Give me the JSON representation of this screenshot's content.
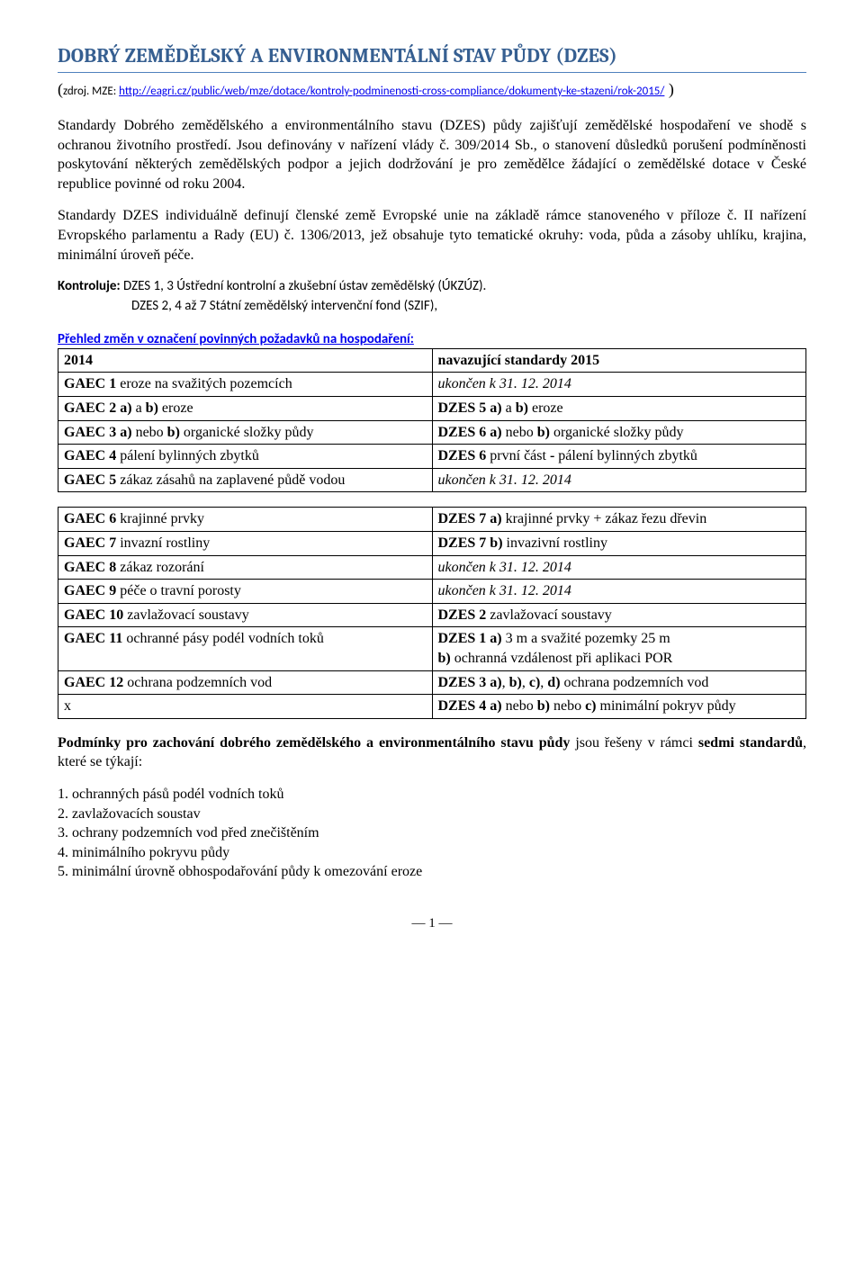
{
  "title": "DOBRÝ ZEMĚDĚLSKÝ A ENVIRONMENTÁLNÍ STAV PŮDY (DZES)",
  "source_lead": "zdroj. MZE: ",
  "source_url_text": "http://eagri.cz/public/web/mze/dotace/kontroly-podminenosti-cross-compliance/dokumenty-ke-stazeni/rok-2015/",
  "source_paren_close": " )",
  "paragraph1": "Standardy Dobrého zemědělského a environmentálního stavu (DZES) půdy zajišťují zemědělské hospodaření ve shodě s ochranou životního prostředí. Jsou definovány v nařízení vlády č. 309/2014 Sb., o stanovení důsledků porušení podmíněnosti poskytování některých zemědělských podpor a jejich dodržování je pro zemědělce žádající o zemědělské dotace v České republice povinné od roku 2004.",
  "paragraph2": "Standardy DZES individuálně definují členské země Evropské unie na základě rámce stanoveného v příloze č. II nařízení Evropského parlamentu a Rady (EU) č. 1306/2013, jež obsahuje tyto tematické okruhy: voda, půda a zásoby uhlíku, krajina, minimální úroveň péče.",
  "kontroluje_label": "Kontroluje:",
  "kontroluje_line1": " DZES 1, 3 Ústřední kontrolní a zkušební ústav zemědělský (ÚKZÚZ).",
  "kontroluje_line2": "DZES 2, 4 až 7 Státní zemědělský intervenční fond (SZIF),",
  "section_link": "Přehled změn v označení povinných požadavků na hospodaření:",
  "table1": {
    "rows": [
      {
        "l_bold": "2014",
        "l_rest": "",
        "r_bold": "navazující standardy 2015",
        "r_rest": ""
      },
      {
        "l_bold": "GAEC 1",
        "l_rest": " eroze na svažitých pozemcích",
        "r_rest_italic": "ukončen k 31. 12. 2014"
      },
      {
        "l_bold": "GAEC 2 a)",
        "l_mid": " a ",
        "l_bold2": "b)",
        "l_rest": " eroze",
        "r": [
          {
            "b": "DZES 5 a)"
          },
          {
            "t": " a "
          },
          {
            "b": "b)"
          },
          {
            "t": " eroze"
          }
        ]
      },
      {
        "l_bold": "GAEC 3 a)",
        "l_mid": " nebo ",
        "l_bold2": "b)",
        "l_rest": " organické složky půdy",
        "r": [
          {
            "b": "DZES 6 a)"
          },
          {
            "t": " nebo "
          },
          {
            "b": "b)"
          },
          {
            "t": " organické složky půdy"
          }
        ]
      },
      {
        "l_bold": "GAEC 4",
        "l_rest": " pálení bylinných zbytků",
        "r": [
          {
            "b": "DZES 6"
          },
          {
            "t": " první část "
          },
          {
            "b": "-"
          },
          {
            "t": " pálení bylinných zbytků"
          }
        ]
      },
      {
        "l_bold": "GAEC 5",
        "l_rest": " zákaz zásahů na zaplavené půdě vodou",
        "r_rest_italic": "ukončen k 31. 12. 2014"
      }
    ]
  },
  "table2": {
    "rows": [
      {
        "l_bold": "GAEC 6",
        "l_rest": " krajinné prvky",
        "r": [
          {
            "b": "DZES 7 a)"
          },
          {
            "t": " krajinné prvky + zákaz řezu dřevin"
          }
        ]
      },
      {
        "l_bold": "GAEC 7",
        "l_rest": " invazní rostliny",
        "r": [
          {
            "b": "DZES 7 b)"
          },
          {
            "t": " invazivní rostliny"
          }
        ]
      },
      {
        "l_bold": "GAEC 8",
        "l_rest": " zákaz rozorání",
        "r_rest_italic": "ukončen k 31. 12. 2014"
      },
      {
        "l_bold": "GAEC 9",
        "l_rest": " péče o travní porosty",
        "r_rest_italic": "ukončen k 31. 12. 2014"
      },
      {
        "l_bold": "GAEC 10",
        "l_rest": " zavlažovací soustavy",
        "r": [
          {
            "b": "DZES 2"
          },
          {
            "t": " zavlažovací soustavy"
          }
        ]
      },
      {
        "l_bold": "GAEC 11",
        "l_rest": " ochranné pásy podél vodních toků",
        "r": [
          {
            "b": "DZES 1 a)"
          },
          {
            "t": " 3 m a svažité pozemky 25 m"
          },
          {
            "br": true
          },
          {
            "b": "b)"
          },
          {
            "t": " ochranná vzdálenost při aplikaci POR"
          }
        ]
      },
      {
        "l_bold": "GAEC 12",
        "l_rest": " ochrana podzemních vod",
        "r": [
          {
            "b": "DZES 3 a)"
          },
          {
            "t": ", "
          },
          {
            "b": "b)"
          },
          {
            "t": ", "
          },
          {
            "b": "c)"
          },
          {
            "t": ", "
          },
          {
            "b": "d)"
          },
          {
            "t": " ochrana podzemních vod"
          }
        ]
      },
      {
        "l_plain": "x",
        "r": [
          {
            "b": "DZES 4 a)"
          },
          {
            "t": " nebo "
          },
          {
            "b": "b)"
          },
          {
            "t": " nebo "
          },
          {
            "b": "c)"
          },
          {
            "t": " minimální pokryv půdy"
          }
        ]
      }
    ]
  },
  "cond_bold": "Podmínky pro zachování dobrého zemědělského a environmentálního stavu půdy",
  "cond_rest1": " jsou řešeny v rámci ",
  "cond_bold2": "sedmi standardů",
  "cond_rest2": ", které se týkají:",
  "list": [
    "1. ochranných pásů podél vodních toků",
    "2. zavlažovacích soustav",
    "3. ochrany podzemních vod před znečištěním",
    "4. minimálního pokryvu půdy",
    "5. minimální úrovně obhospodařování půdy k omezování eroze"
  ],
  "page_num": "― 1 ―"
}
